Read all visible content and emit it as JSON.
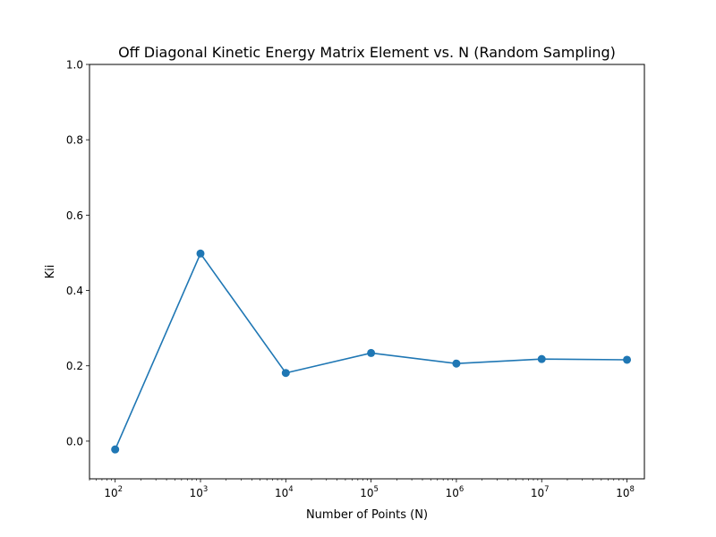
{
  "chart_data": {
    "type": "line",
    "title": "Off Diagonal Kinetic Energy Matrix Element vs. N (Random Sampling)",
    "xlabel": "Number of Points (N)",
    "ylabel": "Kii",
    "xscale": "log",
    "xlim": [
      50,
      160000000
    ],
    "ylim": [
      -0.1,
      1.0
    ],
    "grid": false,
    "x_tick_labels": [
      {
        "value": 100,
        "base": "10",
        "exp": "2"
      },
      {
        "value": 1000,
        "base": "10",
        "exp": "3"
      },
      {
        "value": 10000,
        "base": "10",
        "exp": "4"
      },
      {
        "value": 100000,
        "base": "10",
        "exp": "5"
      },
      {
        "value": 1000000,
        "base": "10",
        "exp": "6"
      },
      {
        "value": 10000000,
        "base": "10",
        "exp": "7"
      },
      {
        "value": 100000000,
        "base": "10",
        "exp": "8"
      }
    ],
    "y_ticks": [
      0.0,
      0.2,
      0.4,
      0.6,
      0.8,
      1.0
    ],
    "y_tick_labels": [
      "0.0",
      "0.2",
      "0.4",
      "0.6",
      "0.8",
      "1.0"
    ],
    "series": [
      {
        "color": "#1f77b4",
        "marker": "circle",
        "x": [
          100,
          1000,
          10000,
          100000,
          1000000,
          10000000,
          100000000
        ],
        "y": [
          -0.022,
          0.498,
          0.181,
          0.234,
          0.206,
          0.218,
          0.216
        ]
      }
    ]
  }
}
